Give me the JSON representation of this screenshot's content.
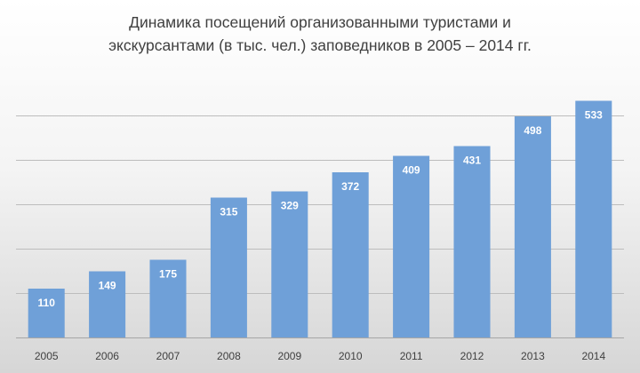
{
  "chart_data": {
    "type": "bar",
    "title_lines": [
      "Динамика посещений организованными туристами и",
      "экскурсантами (в тыс. чел.)  заповедников в 2005 – 2014 гг."
    ],
    "categories": [
      "2005",
      "2006",
      "2007",
      "2008",
      "2009",
      "2010",
      "2011",
      "2012",
      "2013",
      "2014"
    ],
    "values": [
      110,
      149,
      175,
      315,
      329,
      372,
      409,
      431,
      498,
      533
    ],
    "ylim": [
      0,
      600
    ],
    "y_gridlines": [
      100,
      200,
      300,
      400,
      500
    ],
    "y_tick_labels_shown": false,
    "grid": true,
    "legend": false,
    "data_labels": "inside-top",
    "bar_color": "#6fa0d8",
    "label_color": "#ffffff"
  }
}
